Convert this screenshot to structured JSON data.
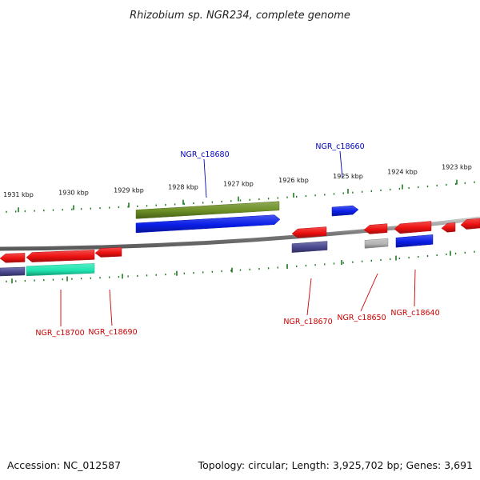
{
  "title": "Rhizobium sp. NGR234, complete genome",
  "footer": {
    "accession": "Accession: NC_012587",
    "topology": "Topology: circular; Length: 3,925,702 bp; Genes: 3,691"
  },
  "ruler": {
    "ticks": [
      {
        "label": "1931 kbp"
      },
      {
        "label": "1930 kbp"
      },
      {
        "label": "1929 kbp"
      },
      {
        "label": "1928 kbp"
      },
      {
        "label": "1927 kbp"
      },
      {
        "label": "1926 kbp"
      },
      {
        "label": "1925 kbp"
      },
      {
        "label": "1924 kbp"
      },
      {
        "label": "1923 kbp"
      }
    ]
  },
  "gene_labels": [
    {
      "text": "NGR_c18680",
      "color": "#0000bb"
    },
    {
      "text": "NGR_c18660",
      "color": "#0000bb"
    },
    {
      "text": "NGR_c18700",
      "color": "#cc0000"
    },
    {
      "text": "NGR_c18690",
      "color": "#cc0000"
    },
    {
      "text": "NGR_c18670",
      "color": "#cc0000"
    },
    {
      "text": "NGR_c18650",
      "color": "#cc0000"
    },
    {
      "text": "NGR_c18640",
      "color": "#cc0000"
    }
  ],
  "colors": {
    "red": "#ee1111",
    "blue": "#0a1ee8",
    "olive": "#6b8e23",
    "navy": "#4a4890",
    "teal": "#1fe6b0",
    "gray": "#b4b4b4",
    "tick_green": "#227a22",
    "backbone": "#808080"
  }
}
